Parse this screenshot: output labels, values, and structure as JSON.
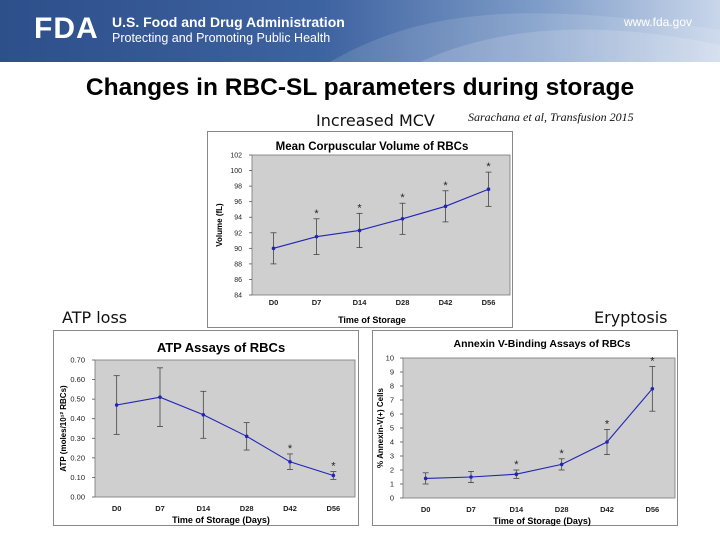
{
  "header": {
    "logo": "FDA",
    "agency_name": "U.S. Food and Drug Administration",
    "tagline": "Protecting and Promoting Public Health",
    "website": "www.fda.gov"
  },
  "slide": {
    "title": "Changes in RBC-SL parameters during storage",
    "citation": "Sarachana et al, Transfusion 2015",
    "labels": {
      "mcv": "Increased MCV",
      "atp": "ATP loss",
      "eryptosis": "Eryptosis"
    }
  },
  "colors": {
    "series": "#2323b4",
    "plot_bg": "#cfcfcf",
    "frame_bg": "#ffffff"
  },
  "chart_data": [
    {
      "id": "mcv",
      "type": "line",
      "title": "Mean Corpuscular Volume of RBCs",
      "xlabel": "Time of Storage",
      "ylabel": "Volume (fL)",
      "categories": [
        "D0",
        "D7",
        "D14",
        "D28",
        "D42",
        "D56"
      ],
      "ylim": [
        84,
        102
      ],
      "yticks": [
        84,
        86,
        88,
        90,
        92,
        94,
        96,
        98,
        100,
        102
      ],
      "ytick_labels": [
        "84",
        "86",
        "88",
        "90",
        "92",
        "94",
        "96",
        "98",
        "100",
        "102"
      ],
      "values": [
        90.0,
        91.5,
        92.3,
        93.8,
        95.4,
        97.6
      ],
      "errors": [
        2.0,
        2.3,
        2.2,
        2.0,
        2.0,
        2.2
      ],
      "significant": [
        false,
        true,
        true,
        true,
        true,
        true
      ],
      "grid": false
    },
    {
      "id": "atp",
      "type": "line",
      "title": "ATP Assays of RBCs",
      "xlabel": "Time of Storage (Days)",
      "ylabel": "ATP (moles/10¹² RBCs)",
      "categories": [
        "D0",
        "D7",
        "D14",
        "D28",
        "D42",
        "D56"
      ],
      "ylim": [
        0,
        0.7
      ],
      "yticks": [
        0,
        0.1,
        0.2,
        0.3,
        0.4,
        0.5,
        0.6,
        0.7
      ],
      "ytick_labels": [
        "0.00",
        "0.10",
        "0.20",
        "0.30",
        "0.40",
        "0.50",
        "0.60",
        "0.70"
      ],
      "values": [
        0.47,
        0.51,
        0.42,
        0.31,
        0.18,
        0.11
      ],
      "errors": [
        0.15,
        0.15,
        0.12,
        0.07,
        0.04,
        0.02
      ],
      "significant": [
        false,
        false,
        false,
        false,
        true,
        true
      ],
      "grid": false
    },
    {
      "id": "annexin",
      "type": "line",
      "title": "Annexin V-Binding Assays of RBCs",
      "xlabel": "Time of Storage (Days)",
      "ylabel": "% Annexin-V(+) Cells",
      "categories": [
        "D0",
        "D7",
        "D14",
        "D28",
        "D42",
        "D56"
      ],
      "ylim": [
        0,
        10
      ],
      "yticks": [
        0,
        1,
        2,
        3,
        4,
        5,
        6,
        7,
        8,
        9,
        10
      ],
      "ytick_labels": [
        "0",
        "1",
        "2",
        "3",
        "4",
        "5",
        "6",
        "7",
        "8",
        "9",
        "10"
      ],
      "values": [
        1.4,
        1.5,
        1.7,
        2.4,
        4.0,
        7.8
      ],
      "errors": [
        0.4,
        0.4,
        0.3,
        0.4,
        0.9,
        1.6
      ],
      "significant": [
        false,
        false,
        true,
        true,
        true,
        true
      ],
      "grid": false
    }
  ]
}
